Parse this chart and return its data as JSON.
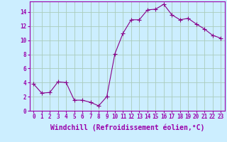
{
  "x": [
    0,
    1,
    2,
    3,
    4,
    5,
    6,
    7,
    8,
    9,
    10,
    11,
    12,
    13,
    14,
    15,
    16,
    17,
    18,
    19,
    20,
    21,
    22,
    23
  ],
  "y": [
    3.8,
    2.5,
    2.6,
    4.1,
    4.0,
    1.5,
    1.5,
    1.2,
    0.7,
    2.0,
    8.1,
    11.0,
    12.9,
    12.9,
    14.3,
    14.4,
    15.1,
    13.6,
    12.9,
    13.1,
    12.3,
    11.6,
    10.7,
    10.3
  ],
  "line_color": "#880088",
  "marker": "+",
  "marker_size": 4,
  "bg_color": "#cceeff",
  "grid_color": "#aaccbb",
  "xlabel": "Windchill (Refroidissement éolien,°C)",
  "ylim": [
    0,
    15.5
  ],
  "xlim": [
    -0.5,
    23.5
  ],
  "yticks": [
    0,
    2,
    4,
    6,
    8,
    10,
    12,
    14
  ],
  "xticks": [
    0,
    1,
    2,
    3,
    4,
    5,
    6,
    7,
    8,
    9,
    10,
    11,
    12,
    13,
    14,
    15,
    16,
    17,
    18,
    19,
    20,
    21,
    22,
    23
  ],
  "tick_fontsize": 5.5,
  "xlabel_fontsize": 7,
  "spine_color": "#9900aa"
}
